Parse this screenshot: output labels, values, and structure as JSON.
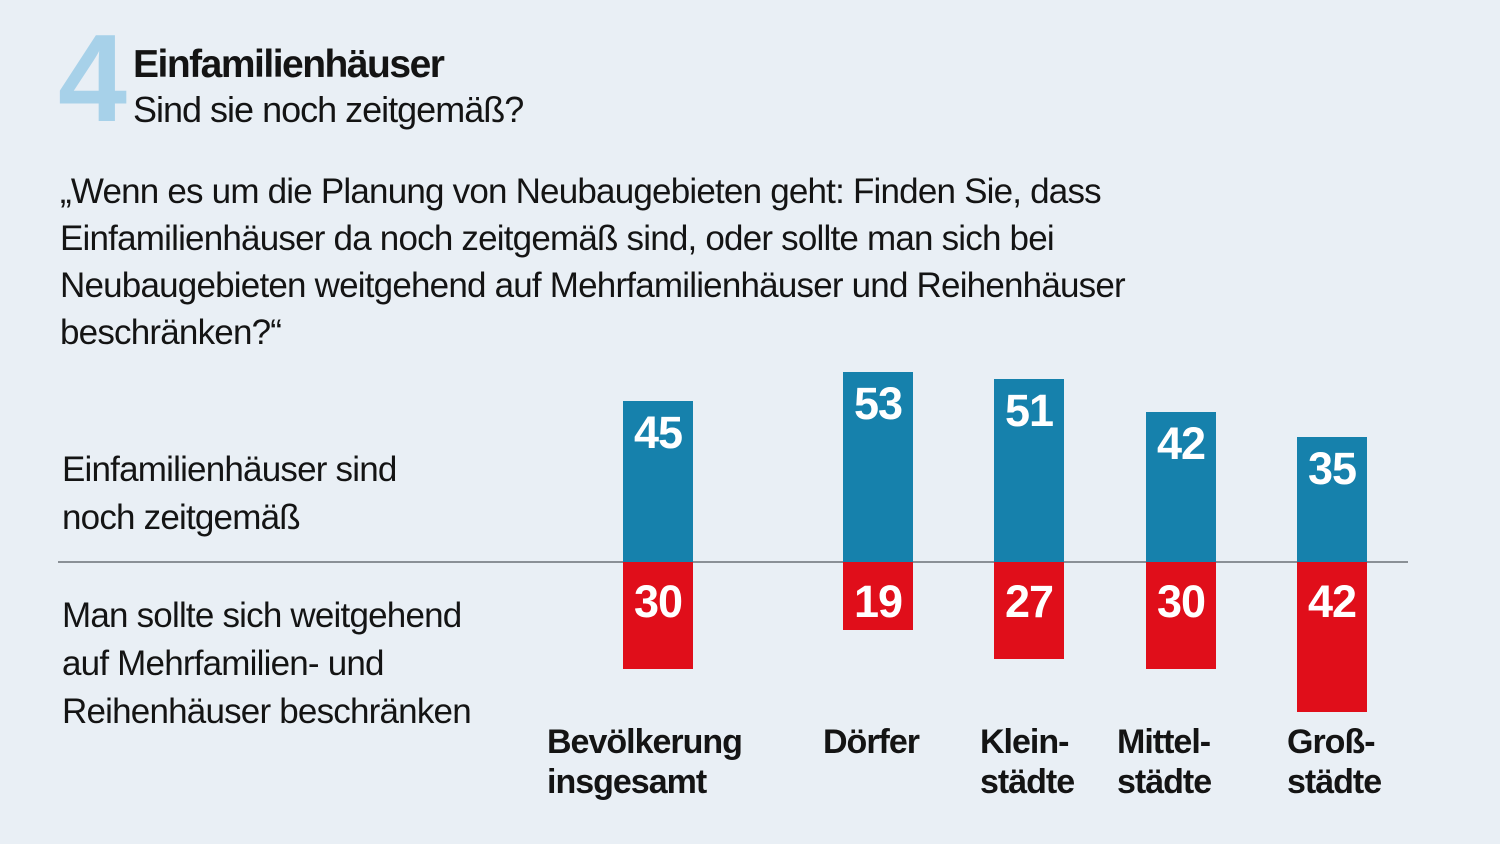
{
  "chart_data": {
    "type": "bar",
    "variant": "diverging-vertical",
    "figure_number": "4",
    "title": "Einfamilienhäuser",
    "subtitle": "Sind sie noch zeitgemäß?",
    "question": "„Wenn es um die Planung von Neubaugebieten geht: Finden Sie, dass\nEinfamilienhäuser da noch zeitgemäß sind, oder sollte man sich bei\nNeubaugebieten weitgehend auf Mehrfamilienhäuser und Reihenhäuser\nbeschränken?“",
    "categories": [
      "Bevölkerung\ninsgesamt",
      "Dörfer",
      "Klein-\nstädte",
      "Mittel-\nstädte",
      "Groß-\nstädte"
    ],
    "series": [
      {
        "name": "Einfamilienhäuser sind\nnoch zeitgemäß",
        "direction": "up",
        "values": [
          45,
          53,
          51,
          42,
          35
        ],
        "color": "#1681ac"
      },
      {
        "name": "Man sollte sich weitgehend\nauf Mehrfamilien- und\nReihenhäuser beschränken",
        "direction": "down",
        "values": [
          30,
          19,
          27,
          30,
          42
        ],
        "color": "#e00e1a"
      }
    ],
    "value_labels_shown": true,
    "value_label_color": "#ffffff",
    "legend_position": "left-rows",
    "grid": false,
    "colors": {
      "background": "#e9eff5",
      "figure_number": "#a7d1e9",
      "baseline": "#8a9096",
      "text": "#141414"
    }
  }
}
